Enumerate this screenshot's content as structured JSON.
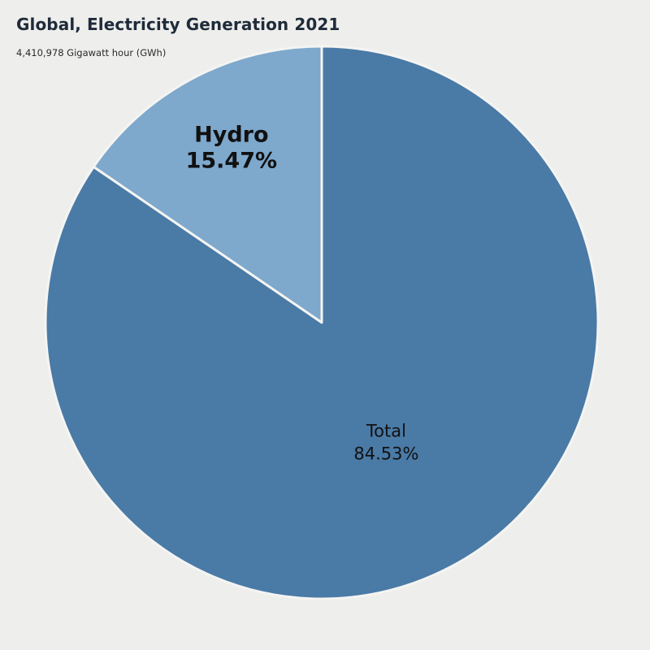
{
  "chart_data": {
    "type": "pie",
    "title": "Global, Electricity Generation 2021",
    "subtitle": "4,410,978 Gigawatt hour (GWh)",
    "slices": [
      {
        "label": "Hydro",
        "value": 15.47,
        "value_text": "15.47%",
        "color": "#7ea8cc",
        "label_weight": "bold"
      },
      {
        "label": "Total",
        "value": 84.53,
        "value_text": "84.53%",
        "color": "#4a7aa6",
        "label_weight": "normal"
      }
    ],
    "start_angle_deg": 0,
    "direction": "counterclockwise",
    "separator_color": "#f4f4f2",
    "text_color": "#111111"
  }
}
